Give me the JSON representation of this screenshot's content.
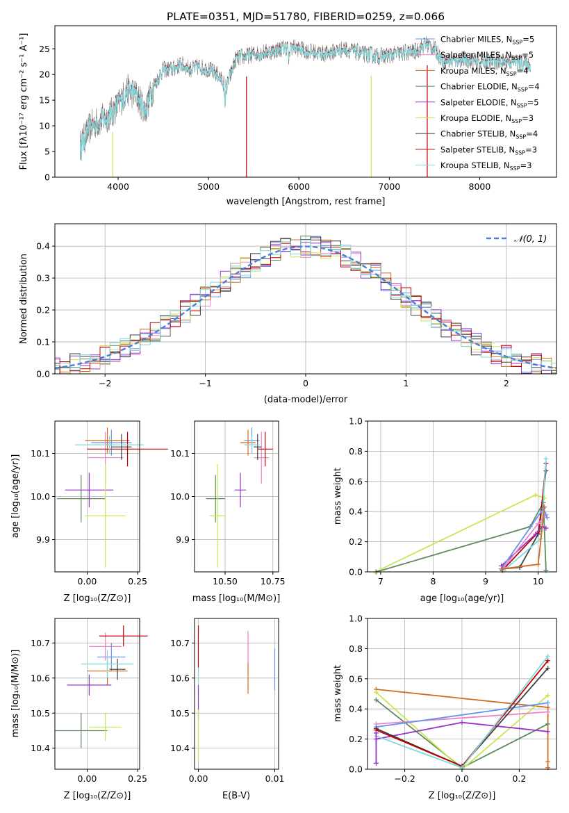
{
  "chart_data": [
    {
      "id": "spectrum",
      "type": "line",
      "title": "PLATE=0351, MJD=51780, FIBERID=0259, z=0.066",
      "xlabel": "wavelength [Angstrom, rest frame]",
      "ylabel": "Flux [fλ10⁻¹⁷ erg cm⁻² s⁻¹ A⁻¹]",
      "xlim": [
        3300,
        8850
      ],
      "ylim": [
        0,
        29.5
      ],
      "xticks": [
        "4000",
        "5000",
        "6000",
        "7000",
        "8000"
      ],
      "yticks": [
        "0",
        "5",
        "10",
        "15",
        "20",
        "25"
      ],
      "data_color": "#808080",
      "model_color": "#7fd8dc",
      "anchors": [
        [
          3580,
          6
        ],
        [
          3700,
          10
        ],
        [
          3800,
          11
        ],
        [
          3900,
          12
        ],
        [
          4000,
          14
        ],
        [
          4100,
          17
        ],
        [
          4200,
          16
        ],
        [
          4300,
          13
        ],
        [
          4400,
          18
        ],
        [
          4500,
          21
        ],
        [
          4600,
          21
        ],
        [
          4700,
          22
        ],
        [
          4800,
          21
        ],
        [
          4900,
          21.5
        ],
        [
          5000,
          21
        ],
        [
          5100,
          20
        ],
        [
          5200,
          17.5
        ],
        [
          5300,
          23
        ],
        [
          5500,
          24
        ],
        [
          5700,
          24.5
        ],
        [
          5900,
          25.5
        ],
        [
          6100,
          24.5
        ],
        [
          6300,
          24
        ],
        [
          6500,
          25
        ],
        [
          6700,
          24
        ],
        [
          6900,
          23.5
        ],
        [
          7100,
          24
        ],
        [
          7300,
          24.5
        ],
        [
          7400,
          26
        ],
        [
          7500,
          25
        ],
        [
          7600,
          22.5
        ],
        [
          7800,
          23
        ],
        [
          8000,
          22.5
        ],
        [
          8200,
          22.5
        ],
        [
          8400,
          22.5
        ],
        [
          8560,
          22
        ]
      ],
      "legend": [
        {
          "label": "Chabrier MILES, N",
          "sub": "SSP",
          "n": "=5",
          "color": "#6495ed"
        },
        {
          "label": "Salpeter MILES, N",
          "sub": "SSP",
          "n": "=5",
          "color": "#ee82c8"
        },
        {
          "label": "Kroupa MILES, N",
          "sub": "SSP",
          "n": "=4",
          "color": "#d2691e"
        },
        {
          "label": "Chabrier ELODIE, N",
          "sub": "SSP",
          "n": "=4",
          "color": "#5f8a5f"
        },
        {
          "label": "Salpeter ELODIE, N",
          "sub": "SSP",
          "n": "=5",
          "color": "#9932cc"
        },
        {
          "label": "Kroupa ELODIE, N",
          "sub": "SSP",
          "n": "=3",
          "color": "#c8e650"
        },
        {
          "label": "Chabrier STELIB, N",
          "sub": "SSP",
          "n": "=4",
          "color": "#404040"
        },
        {
          "label": "Salpeter STELIB, N",
          "sub": "SSP",
          "n": "=3",
          "color": "#c00000"
        },
        {
          "label": "Kroupa STELIB, N",
          "sub": "SSP",
          "n": "=3",
          "color": "#7fd8dc"
        }
      ]
    },
    {
      "id": "residuals",
      "type": "histogram",
      "xlabel": "(data-model)/error",
      "ylabel": "Normed distribution",
      "xlim": [
        -2.5,
        2.5
      ],
      "ylim": [
        0,
        0.47
      ],
      "xticks": [
        "−2",
        "−1",
        "0",
        "1",
        "2"
      ],
      "yticks": [
        "0.0",
        "0.1",
        "0.2",
        "0.3",
        "0.4"
      ],
      "legend_label": "𝒩(0, 1)",
      "gaussian_color": "#4a80d8",
      "bin_width": 0.1
    },
    {
      "id": "age-vs-Z",
      "type": "scatter",
      "xlabel": "Z [log₁₀(Z/Z⊙)]",
      "ylabel": "age  [log₁₀(age/yr)]",
      "xlim": [
        -0.16,
        0.26
      ],
      "ylim": [
        9.825,
        10.175
      ],
      "xticks": [
        "0.00",
        "0.25"
      ],
      "yticks": [
        "9.9",
        "10.0",
        "10.1"
      ],
      "points": [
        {
          "x": 0.12,
          "y": 10.125,
          "xerr": 0.1,
          "yerr": 0.03,
          "color": "#6495ed"
        },
        {
          "x": 0.09,
          "y": 10.09,
          "xerr": 0.09,
          "yerr": 0.06,
          "color": "#ee82c8"
        },
        {
          "x": 0.1,
          "y": 10.13,
          "xerr": 0.11,
          "yerr": 0.03,
          "color": "#d2691e"
        },
        {
          "x": -0.03,
          "y": 9.995,
          "xerr": 0.12,
          "yerr": 0.055,
          "color": "#5f8a5f"
        },
        {
          "x": 0.01,
          "y": 10.015,
          "xerr": 0.12,
          "yerr": 0.04,
          "color": "#9932cc"
        },
        {
          "x": 0.09,
          "y": 9.955,
          "xerr": 0.1,
          "yerr": 0.12,
          "color": "#c8e650"
        },
        {
          "x": 0.17,
          "y": 10.115,
          "xerr": 0.05,
          "yerr": 0.03,
          "color": "#404040"
        },
        {
          "x": 0.2,
          "y": 10.11,
          "xerr": 0.2,
          "yerr": 0.04,
          "color": "#c00000"
        },
        {
          "x": 0.11,
          "y": 10.12,
          "xerr": 0.17,
          "yerr": 0.02,
          "color": "#7fd8dc"
        }
      ]
    },
    {
      "id": "age-vs-mass",
      "type": "scatter",
      "xlabel": "mass [log₁₀(M/M⊙)]",
      "ylabel": "",
      "xlim": [
        10.34,
        10.78
      ],
      "ylim": [
        9.825,
        10.175
      ],
      "xticks": [
        "10.50",
        "10.75"
      ],
      "yticks": [
        "9.9",
        "10.0",
        "10.1"
      ],
      "points": [
        {
          "x": 10.64,
          "y": 10.13,
          "xerr": 0.04,
          "yerr": 0.03,
          "color": "#6495ed"
        },
        {
          "x": 10.69,
          "y": 10.09,
          "xerr": 0.04,
          "yerr": 0.06,
          "color": "#ee82c8"
        },
        {
          "x": 10.62,
          "y": 10.125,
          "xerr": 0.04,
          "yerr": 0.03,
          "color": "#d2691e"
        },
        {
          "x": 10.45,
          "y": 9.995,
          "xerr": 0.05,
          "yerr": 0.055,
          "color": "#5f8a5f"
        },
        {
          "x": 10.58,
          "y": 10.015,
          "xerr": 0.03,
          "yerr": 0.04,
          "color": "#9932cc"
        },
        {
          "x": 10.46,
          "y": 9.955,
          "xerr": 0.04,
          "yerr": 0.12,
          "color": "#c8e650"
        },
        {
          "x": 10.67,
          "y": 10.115,
          "xerr": 0.02,
          "yerr": 0.03,
          "color": "#404040"
        },
        {
          "x": 10.71,
          "y": 10.11,
          "xerr": 0.04,
          "yerr": 0.04,
          "color": "#c00000"
        },
        {
          "x": 10.64,
          "y": 10.12,
          "xerr": 0.04,
          "yerr": 0.02,
          "color": "#7fd8dc"
        }
      ]
    },
    {
      "id": "weight-vs-age",
      "type": "line",
      "xlabel": "age  [log₁₀(age/yr)]",
      "ylabel": "mass weight",
      "xlim": [
        6.75,
        10.35
      ],
      "ylim": [
        0,
        1.0
      ],
      "xticks": [
        "7",
        "8",
        "9",
        "10"
      ],
      "yticks": [
        "0.0",
        "0.2",
        "0.4",
        "0.6",
        "0.8",
        "1.0"
      ],
      "series": [
        {
          "color": "#c8e650",
          "points": [
            [
              6.9,
              0.0
            ],
            [
              9.95,
              0.51
            ],
            [
              10.12,
              0.49
            ]
          ]
        },
        {
          "color": "#5f8a5f",
          "points": [
            [
              6.92,
              0.0
            ],
            [
              9.85,
              0.3
            ],
            [
              10.1,
              0.46
            ],
            [
              10.15,
              0.01
            ]
          ]
        },
        {
          "color": "#404040",
          "points": [
            [
              9.3,
              0.02
            ],
            [
              9.65,
              0.03
            ],
            [
              10.0,
              0.25
            ],
            [
              10.15,
              0.67
            ]
          ]
        },
        {
          "color": "#c00000",
          "points": [
            [
              9.32,
              0.01
            ],
            [
              10.02,
              0.27
            ],
            [
              10.15,
              0.72
            ]
          ]
        },
        {
          "color": "#7fd8dc",
          "points": [
            [
              9.35,
              0.01
            ],
            [
              10.05,
              0.22
            ],
            [
              10.15,
              0.75
            ]
          ]
        },
        {
          "color": "#9932cc",
          "points": [
            [
              9.3,
              0.04
            ],
            [
              9.95,
              0.25
            ],
            [
              10.08,
              0.3
            ],
            [
              10.15,
              0.29
            ]
          ]
        },
        {
          "color": "#ee82c8",
          "points": [
            [
              9.35,
              0.03
            ],
            [
              10.0,
              0.32
            ],
            [
              10.15,
              0.38
            ]
          ]
        },
        {
          "color": "#6495ed",
          "points": [
            [
              9.3,
              0.02
            ],
            [
              10.1,
              0.42
            ],
            [
              10.17,
              0.36
            ]
          ]
        },
        {
          "color": "#d2691e",
          "points": [
            [
              9.32,
              0.02
            ],
            [
              10.0,
              0.05
            ],
            [
              10.12,
              0.43
            ]
          ]
        }
      ]
    },
    {
      "id": "mass-vs-Z",
      "type": "scatter",
      "xlabel": "Z [log₁₀(Z/Z⊙)]",
      "ylabel": "mass [log₁₀(M/M⊙)]",
      "xlim": [
        -0.16,
        0.26
      ],
      "ylim": [
        10.34,
        10.77
      ],
      "xticks": [
        "0.00",
        "0.25"
      ],
      "yticks": [
        "10.4",
        "10.5",
        "10.6",
        "10.7"
      ],
      "points": [
        {
          "x": 0.12,
          "y": 10.66,
          "xerr": 0.07,
          "yerr": 0.04,
          "color": "#6495ed"
        },
        {
          "x": 0.09,
          "y": 10.69,
          "xerr": 0.08,
          "yerr": 0.04,
          "color": "#ee82c8"
        },
        {
          "x": 0.1,
          "y": 10.62,
          "xerr": 0.1,
          "yerr": 0.04,
          "color": "#d2691e"
        },
        {
          "x": -0.03,
          "y": 10.45,
          "xerr": 0.13,
          "yerr": 0.05,
          "color": "#5f8a5f"
        },
        {
          "x": 0.01,
          "y": 10.58,
          "xerr": 0.11,
          "yerr": 0.03,
          "color": "#9932cc"
        },
        {
          "x": 0.09,
          "y": 10.46,
          "xerr": 0.08,
          "yerr": 0.04,
          "color": "#c8e650"
        },
        {
          "x": 0.15,
          "y": 10.625,
          "xerr": 0.04,
          "yerr": 0.03,
          "color": "#404040"
        },
        {
          "x": 0.18,
          "y": 10.72,
          "xerr": 0.12,
          "yerr": 0.03,
          "color": "#c00000"
        },
        {
          "x": 0.1,
          "y": 10.64,
          "xerr": 0.13,
          "yerr": 0.04,
          "color": "#7fd8dc"
        }
      ]
    },
    {
      "id": "mass-vs-ebv",
      "type": "scatter",
      "xlabel": "E(B-V)",
      "ylabel": "",
      "xlim": [
        -0.0005,
        0.0105
      ],
      "ylim": [
        10.34,
        10.77
      ],
      "xticks": [
        "0.00",
        "0.01"
      ],
      "yticks": [
        "10.4",
        "10.5",
        "10.6",
        "10.7"
      ],
      "points": [
        {
          "x": 0.01,
          "y": 10.625,
          "xerr": 0,
          "yerr": 0.06,
          "color": "#6495ed"
        },
        {
          "x": 0.0065,
          "y": 10.69,
          "xerr": 0,
          "yerr": 0.045,
          "color": "#ee82c8"
        },
        {
          "x": 0.0065,
          "y": 10.6,
          "xerr": 0,
          "yerr": 0.045,
          "color": "#d2691e"
        },
        {
          "x": 0.0,
          "y": 10.6,
          "xerr": 0,
          "yerr": 0.05,
          "color": "#7fd8dc"
        },
        {
          "x": 0.0,
          "y": 10.53,
          "xerr": 0,
          "yerr": 0.05,
          "color": "#9932cc"
        },
        {
          "x": 0.0,
          "y": 10.44,
          "xerr": 0,
          "yerr": 0.07,
          "color": "#c8e650"
        },
        {
          "x": 0.0,
          "y": 10.69,
          "xerr": 0,
          "yerr": 0.06,
          "color": "#c00000"
        }
      ]
    },
    {
      "id": "weight-vs-Z",
      "type": "line",
      "xlabel": "Z [log₁₀(Z/Z⊙)]",
      "ylabel": "mass weight",
      "xlim": [
        -0.33,
        0.33
      ],
      "ylim": [
        0,
        1.0
      ],
      "xticks": [
        "−0.2",
        "0.0",
        "0.2"
      ],
      "yticks": [
        "0.0",
        "0.2",
        "0.4",
        "0.6",
        "0.8",
        "1.0"
      ],
      "series": [
        {
          "color": "#d2691e",
          "points": [
            [
              -0.3,
              0.53
            ],
            [
              0.3,
              0.41
            ],
            [
              0.3,
              0.05
            ],
            [
              0.3,
              0.01
            ]
          ]
        },
        {
          "color": "#5f8a5f",
          "points": [
            [
              -0.3,
              0.46
            ],
            [
              0.0,
              0.01
            ],
            [
              0.3,
              0.3
            ]
          ]
        },
        {
          "color": "#c8e650",
          "points": [
            [
              -0.3,
              0.51
            ],
            [
              0.0,
              0.0
            ],
            [
              0.3,
              0.49
            ]
          ]
        },
        {
          "color": "#ee82c8",
          "points": [
            [
              -0.3,
              0.3
            ],
            [
              0.3,
              0.38
            ]
          ]
        },
        {
          "color": "#6495ed",
          "points": [
            [
              -0.3,
              0.28
            ],
            [
              0.3,
              0.44
            ]
          ]
        },
        {
          "color": "#9932cc",
          "points": [
            [
              -0.3,
              0.2
            ],
            [
              0.0,
              0.31
            ],
            [
              0.3,
              0.25
            ]
          ]
        },
        {
          "color": "#404040",
          "points": [
            [
              -0.3,
              0.27
            ],
            [
              0.0,
              0.02
            ],
            [
              0.3,
              0.67
            ]
          ]
        },
        {
          "color": "#c00000",
          "points": [
            [
              -0.3,
              0.26
            ],
            [
              0.0,
              0.02
            ],
            [
              0.3,
              0.72
            ]
          ]
        },
        {
          "color": "#7fd8dc",
          "points": [
            [
              -0.3,
              0.22
            ],
            [
              0.0,
              0.01
            ],
            [
              0.3,
              0.75
            ]
          ]
        },
        {
          "color": "#9932cc",
          "points": [
            [
              -0.3,
              0.04
            ],
            [
              -0.3,
              0.24
            ]
          ]
        }
      ]
    }
  ]
}
